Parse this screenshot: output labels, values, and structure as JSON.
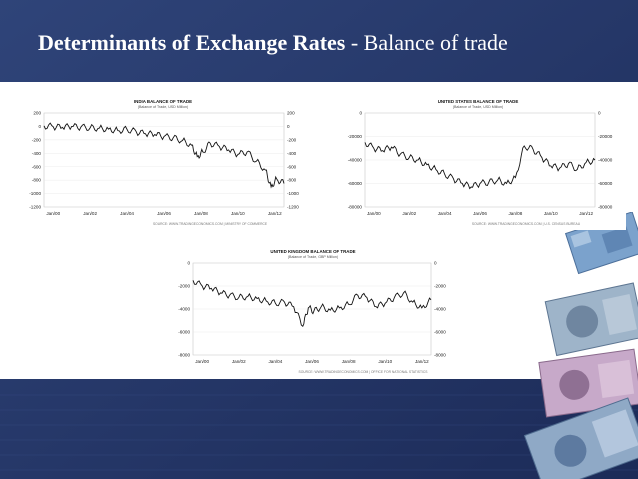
{
  "slide": {
    "title_bold": "Determinants of Exchange Rates",
    "title_rest": "- Balance of trade"
  },
  "colors": {
    "background": "#26386a",
    "title_text": "#ffffff",
    "line": "#111111"
  },
  "decoration": {
    "icon": "banknotes-image"
  },
  "chart_data": [
    {
      "type": "line",
      "title": "INDIA BALANCE OF TRADE",
      "subtitle": "(Balance of Trade, USD Million)",
      "source": "SOURCE: WWW.TRADINGECONOMICS.COM | MINISTRY OF COMMERCE",
      "x_ticks": [
        "Jan/00",
        "Jan/02",
        "Jan/04",
        "Jan/06",
        "Jan/08",
        "Jan/10",
        "Jan/12"
      ],
      "x_range": [
        2000,
        2013
      ],
      "y_ticks": [
        "200",
        "0",
        "-200",
        "-400",
        "-600",
        "-800",
        "-1000",
        "-1200"
      ],
      "ylim": [
        -1200,
        200
      ],
      "series": [
        {
          "values": [
            [
              2000,
              10
            ],
            [
              2000.5,
              -5
            ],
            [
              2001,
              -15
            ],
            [
              2001.5,
              0
            ],
            [
              2002,
              -10
            ],
            [
              2002.5,
              -20
            ],
            [
              2003,
              -25
            ],
            [
              2003.5,
              -40
            ],
            [
              2004,
              -60
            ],
            [
              2004.5,
              -45
            ],
            [
              2005,
              -80
            ],
            [
              2005.5,
              -110
            ],
            [
              2006,
              -120
            ],
            [
              2006.5,
              -150
            ],
            [
              2007,
              -170
            ],
            [
              2007.5,
              -210
            ],
            [
              2008,
              -280
            ],
            [
              2008.3,
              -450
            ],
            [
              2008.6,
              -380
            ],
            [
              2009,
              -250
            ],
            [
              2009.5,
              -300
            ],
            [
              2010,
              -350
            ],
            [
              2010.5,
              -420
            ],
            [
              2011,
              -380
            ],
            [
              2011.5,
              -520
            ],
            [
              2012,
              -650
            ],
            [
              2012.3,
              -900
            ],
            [
              2012.6,
              -780
            ],
            [
              2013,
              -850
            ]
          ]
        }
      ]
    },
    {
      "type": "line",
      "title": "UNITED STATES BALANCE OF TRADE",
      "subtitle": "(Balance of Trade, USD Million)",
      "source": "SOURCE: WWW.TRADINGECONOMICS.COM | U.S. CENSUS BUREAU",
      "x_ticks": [
        "Jan/00",
        "Jan/02",
        "Jan/04",
        "Jan/06",
        "Jan/08",
        "Jan/10",
        "Jan/12"
      ],
      "x_range": [
        2000,
        2013
      ],
      "y_ticks": [
        "0",
        "-20000",
        "-40000",
        "-60000",
        "-80000"
      ],
      "ylim": [
        -80000,
        0
      ],
      "series": [
        {
          "values": [
            [
              2000,
              -25000
            ],
            [
              2000.5,
              -30000
            ],
            [
              2001,
              -32000
            ],
            [
              2001.5,
              -29000
            ],
            [
              2002,
              -35000
            ],
            [
              2002.5,
              -38000
            ],
            [
              2003,
              -40000
            ],
            [
              2003.5,
              -44000
            ],
            [
              2004,
              -48000
            ],
            [
              2004.5,
              -52000
            ],
            [
              2005,
              -56000
            ],
            [
              2005.5,
              -60000
            ],
            [
              2006,
              -63000
            ],
            [
              2006.5,
              -60000
            ],
            [
              2007,
              -59000
            ],
            [
              2007.5,
              -57000
            ],
            [
              2008,
              -60000
            ],
            [
              2008.5,
              -55000
            ],
            [
              2009,
              -28000
            ],
            [
              2009.5,
              -31000
            ],
            [
              2010,
              -38000
            ],
            [
              2010.5,
              -45000
            ],
            [
              2011,
              -47000
            ],
            [
              2011.5,
              -43000
            ],
            [
              2012,
              -48000
            ],
            [
              2012.5,
              -42000
            ],
            [
              2013,
              -40000
            ]
          ]
        }
      ]
    },
    {
      "type": "line",
      "title": "UNITED KINGDOM BALANCE OF TRADE",
      "subtitle": "(Balance of Trade, GBP Million)",
      "source": "SOURCE: WWW.TRADINGECONOMICS.COM | OFFICE FOR NATIONAL STATISTICS",
      "x_ticks": [
        "Jan/00",
        "Jan/02",
        "Jan/04",
        "Jan/06",
        "Jan/08",
        "Jan/10",
        "Jan/12"
      ],
      "x_range": [
        2000,
        2013
      ],
      "y_ticks": [
        "0",
        "-2000",
        "-4000",
        "-6000",
        "-8000"
      ],
      "ylim": [
        -8000,
        0
      ],
      "series": [
        {
          "values": [
            [
              2000,
              -1500
            ],
            [
              2000.5,
              -2000
            ],
            [
              2001,
              -2200
            ],
            [
              2001.5,
              -2600
            ],
            [
              2002,
              -2800
            ],
            [
              2002.5,
              -3000
            ],
            [
              2003,
              -2900
            ],
            [
              2003.5,
              -3100
            ],
            [
              2004,
              -3300
            ],
            [
              2004.5,
              -3500
            ],
            [
              2005,
              -3400
            ],
            [
              2005.5,
              -3800
            ],
            [
              2006,
              -5500
            ],
            [
              2006.3,
              -3900
            ],
            [
              2006.6,
              -4200
            ],
            [
              2007,
              -3800
            ],
            [
              2007.5,
              -4100
            ],
            [
              2008,
              -3900
            ],
            [
              2008.5,
              -3600
            ],
            [
              2009,
              -2800
            ],
            [
              2009.5,
              -3000
            ],
            [
              2010,
              -3800
            ],
            [
              2010.5,
              -3500
            ],
            [
              2011,
              -3000
            ],
            [
              2011.5,
              -2600
            ],
            [
              2012,
              -3400
            ],
            [
              2012.5,
              -3900
            ],
            [
              2013,
              -3200
            ]
          ]
        }
      ]
    }
  ]
}
